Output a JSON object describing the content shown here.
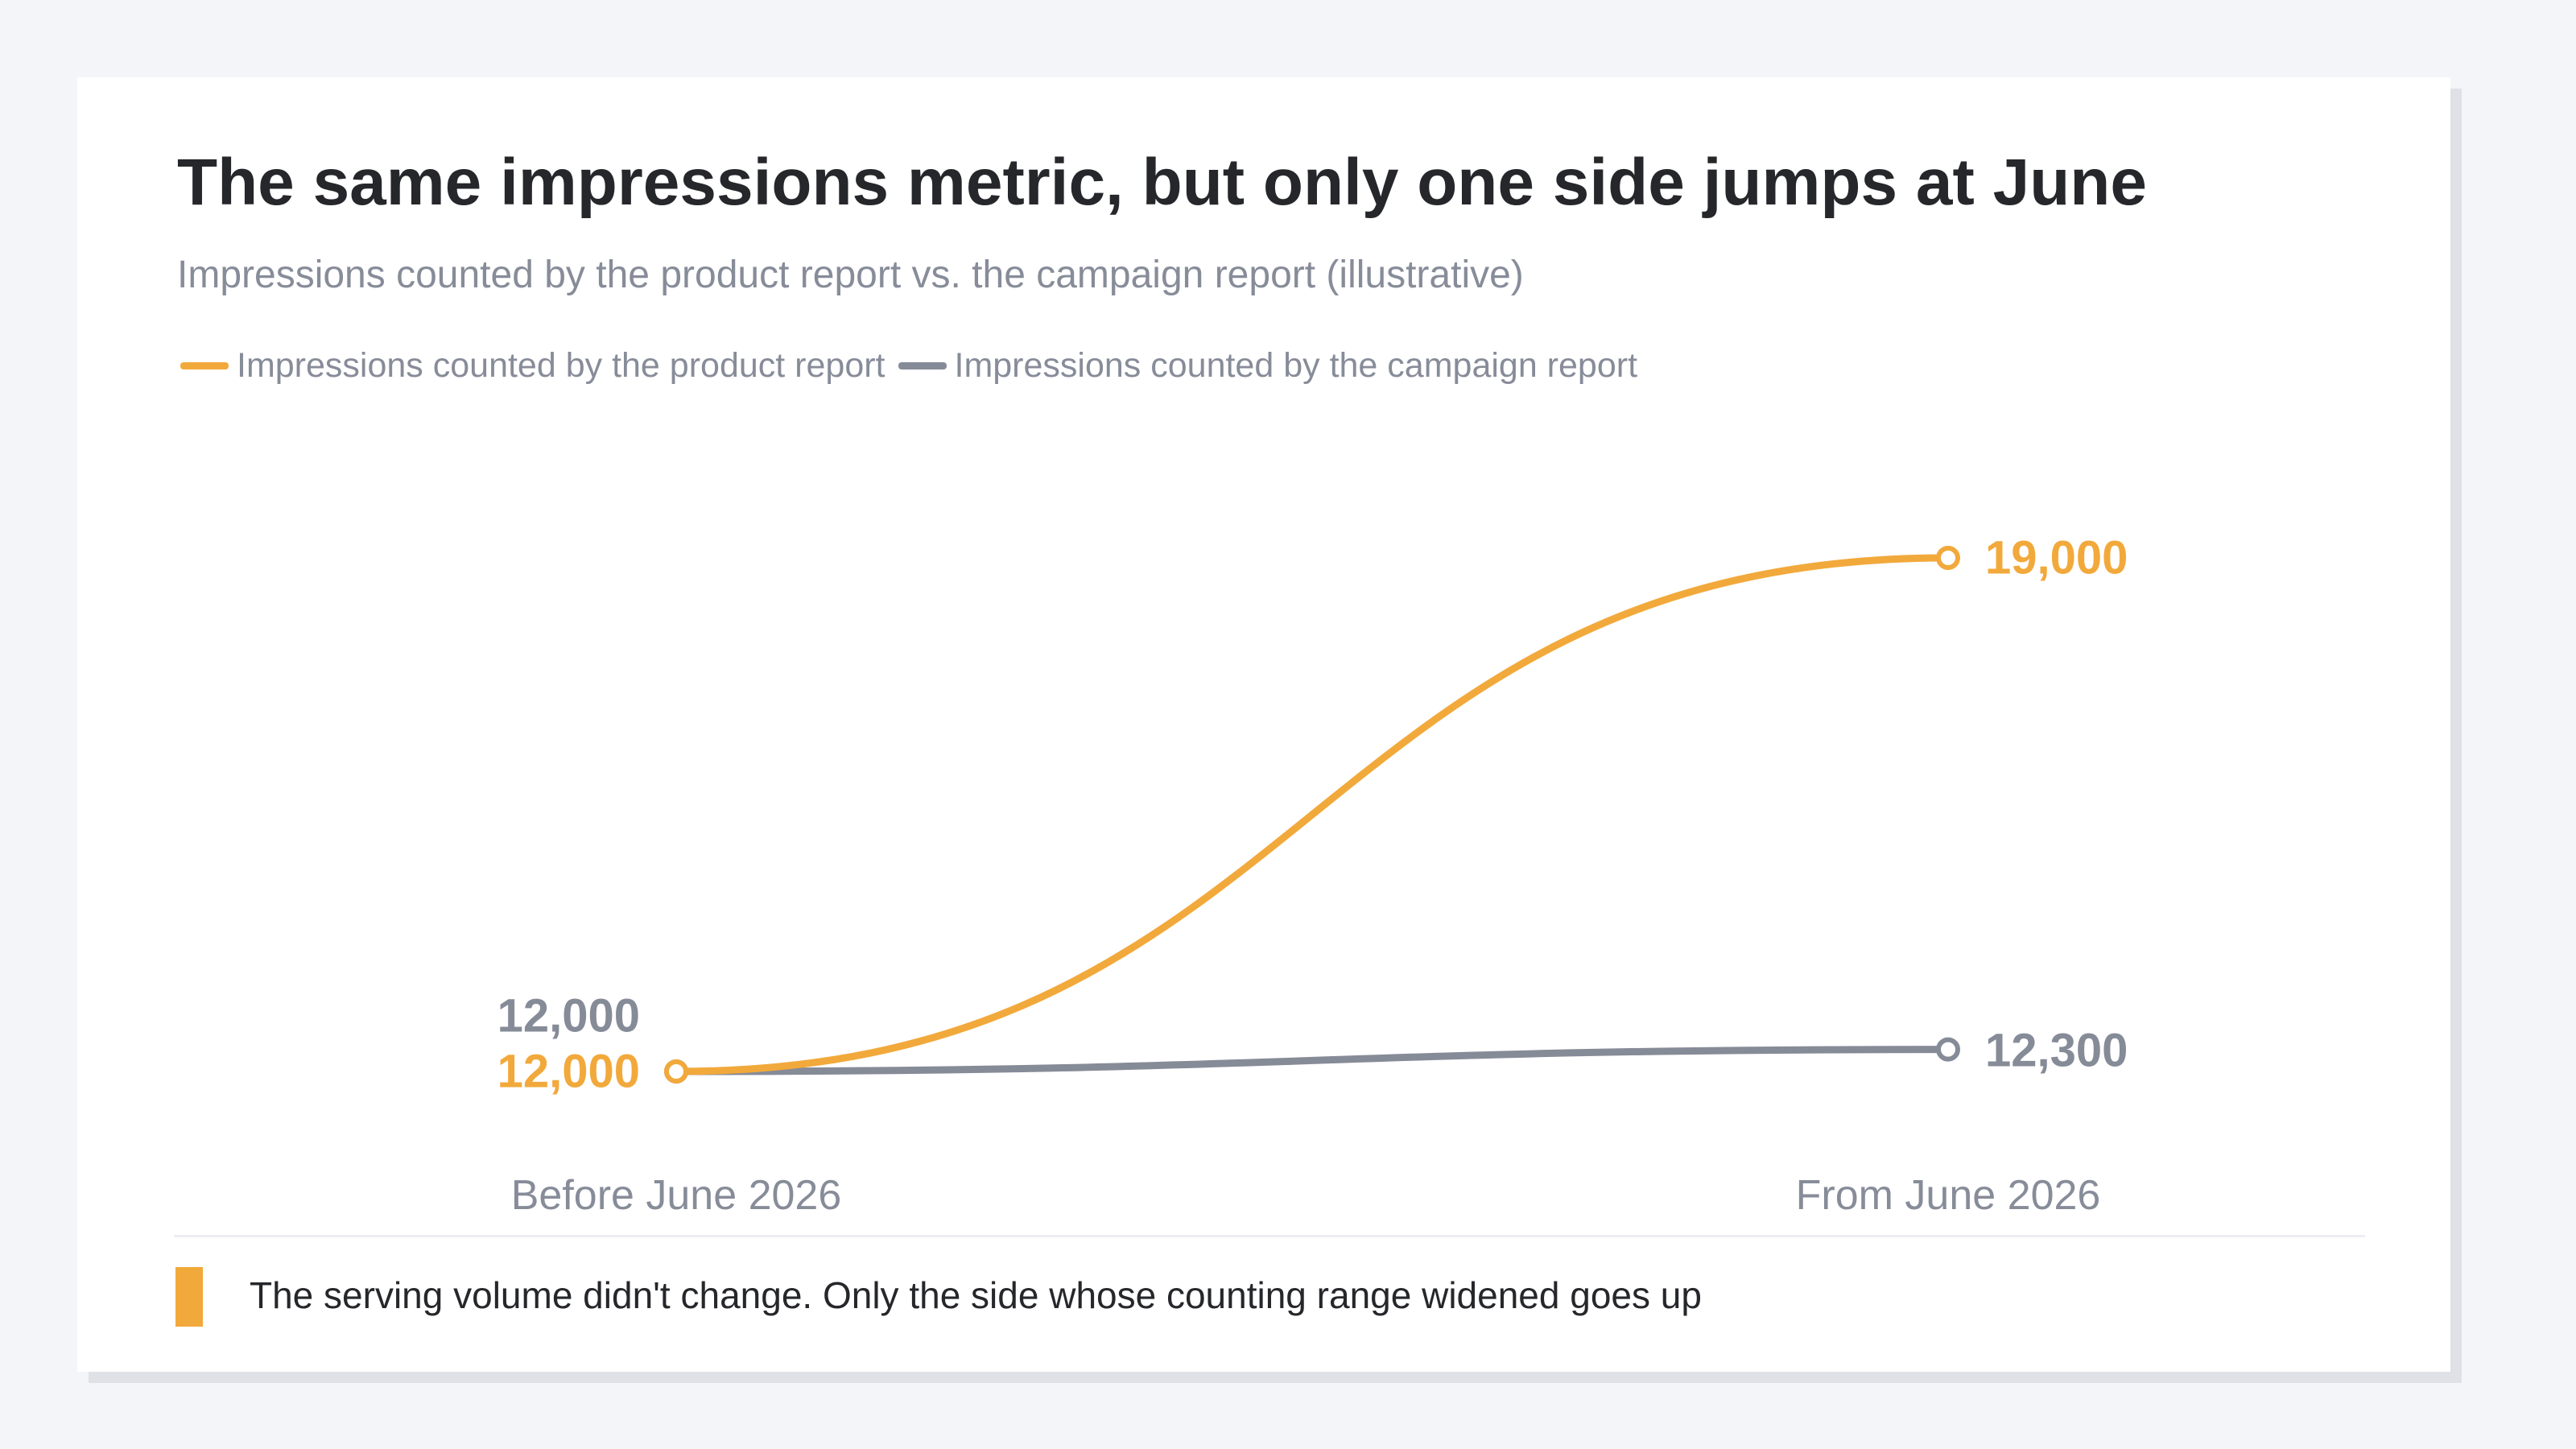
{
  "title": "The same impressions metric, but only one side jumps at June",
  "subtitle": "Impressions counted by the product report vs. the campaign report (illustrative)",
  "note": "The serving volume didn't change. Only the side whose counting range widened goes up",
  "colors": {
    "product": "#f2a93b",
    "campaign": "#868b98",
    "note_accent": "#f2a93b"
  },
  "chart_data": {
    "type": "line",
    "categories": [
      "Before June 2026",
      "From June 2026"
    ],
    "series": [
      {
        "name": "Impressions counted by the product report",
        "values": [
          12000,
          19000
        ],
        "labels": [
          "12,000",
          "19,000"
        ],
        "color": "#f2a93b"
      },
      {
        "name": "Impressions counted by the campaign report",
        "values": [
          12000,
          12300
        ],
        "labels": [
          "12,000",
          "12,300"
        ],
        "color": "#868b98"
      }
    ],
    "title": "The same impressions metric, but only one side jumps at June",
    "subtitle": "Impressions counted by the product report vs. the campaign report (illustrative)",
    "legend": "top-left",
    "grid": false,
    "yaxis_visible": false
  }
}
